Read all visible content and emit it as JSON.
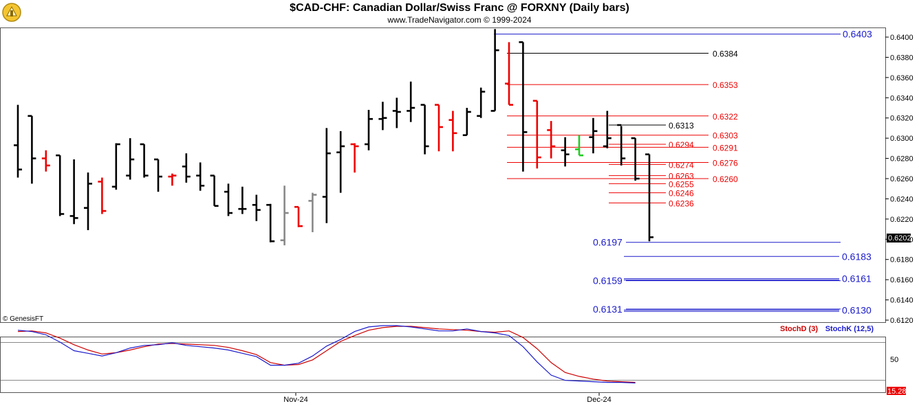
{
  "header": {
    "title": "$CAD-CHF:  Canadian Dollar/Swiss Franc @ FORXNY  (Daily bars)",
    "subtitle": "www.TradeNavigator.com © 1999-2024"
  },
  "price_panel": {
    "copyright": "© GenesisFT",
    "current_price": "0.6202"
  },
  "indicator_panel": {
    "legend": [
      {
        "label": "StochD (3)",
        "color": "#cc0000"
      },
      {
        "label": "StochK (12,5)",
        "color": "#1a1acc"
      }
    ],
    "y_label": "50",
    "current_value": "15.28"
  },
  "x_axis_labels": [
    "Nov-24",
    "Dec-24"
  ],
  "colors": {
    "up_bar": "#000000",
    "down_red": "#ee0000",
    "neutral_gray": "#888888",
    "blue_level": "#1a1acc",
    "red_level": "#ee0000",
    "black_level": "#000000",
    "price_tag_bg": "#000000",
    "stoch_tag_bg": "#ee0000"
  },
  "chart_data": [
    {
      "type": "ohlc",
      "title": "$CAD-CHF:  Canadian Dollar/Swiss Franc @ FORXNY  (Daily bars)",
      "ylim": [
        0.6115,
        0.6412
      ],
      "y_ticks": [
        "0.6400",
        "0.6380",
        "0.6360",
        "0.6340",
        "0.6320",
        "0.6300",
        "0.6280",
        "0.6260",
        "0.6240",
        "0.6220",
        "0.6200",
        "0.6180",
        "0.6160",
        "0.6140",
        "0.6120"
      ],
      "bars": [
        {
          "h": 0.6333,
          "l": 0.6261,
          "o": 0.6293,
          "c": 0.6269,
          "color": "black"
        },
        {
          "h": 0.6322,
          "l": 0.6255,
          "o": 0.6322,
          "c": 0.628,
          "color": "black"
        },
        {
          "h": 0.6288,
          "l": 0.6267,
          "o": 0.628,
          "c": 0.6273,
          "color": "red"
        },
        {
          "h": 0.6283,
          "l": 0.6223,
          "o": 0.6283,
          "c": 0.6225,
          "color": "black"
        },
        {
          "h": 0.6279,
          "l": 0.6215,
          "o": 0.6223,
          "c": 0.6221,
          "color": "black"
        },
        {
          "h": 0.6266,
          "l": 0.6209,
          "o": 0.6231,
          "c": 0.6255,
          "color": "black"
        },
        {
          "h": 0.6261,
          "l": 0.6225,
          "o": 0.6257,
          "c": 0.6228,
          "color": "red"
        },
        {
          "h": 0.6295,
          "l": 0.6249,
          "o": 0.6252,
          "c": 0.6294,
          "color": "black"
        },
        {
          "h": 0.63,
          "l": 0.6259,
          "o": 0.6263,
          "c": 0.6279,
          "color": "black"
        },
        {
          "h": 0.6294,
          "l": 0.6261,
          "o": 0.6294,
          "c": 0.6263,
          "color": "black"
        },
        {
          "h": 0.6279,
          "l": 0.6247,
          "o": 0.6279,
          "c": 0.6262,
          "color": "black"
        },
        {
          "h": 0.6265,
          "l": 0.6253,
          "o": 0.6262,
          "c": 0.6263,
          "color": "red"
        },
        {
          "h": 0.6285,
          "l": 0.6256,
          "o": 0.6272,
          "c": 0.6262,
          "color": "black"
        },
        {
          "h": 0.6276,
          "l": 0.6248,
          "o": 0.6263,
          "c": 0.6253,
          "color": "black"
        },
        {
          "h": 0.6263,
          "l": 0.6233,
          "o": 0.6263,
          "c": 0.6233,
          "color": "black"
        },
        {
          "h": 0.6255,
          "l": 0.6223,
          "o": 0.6247,
          "c": 0.6226,
          "color": "black"
        },
        {
          "h": 0.6252,
          "l": 0.6225,
          "o": 0.623,
          "c": 0.623,
          "color": "black"
        },
        {
          "h": 0.6244,
          "l": 0.6218,
          "o": 0.6234,
          "c": 0.6229,
          "color": "black"
        },
        {
          "h": 0.6235,
          "l": 0.6197,
          "o": 0.6234,
          "c": 0.6198,
          "color": "black"
        },
        {
          "h": 0.6253,
          "l": 0.6194,
          "o": 0.6199,
          "c": 0.6226,
          "color": "gray"
        },
        {
          "h": 0.6232,
          "l": 0.6212,
          "o": 0.6232,
          "c": 0.6213,
          "color": "red"
        },
        {
          "h": 0.6246,
          "l": 0.6207,
          "o": 0.6238,
          "c": 0.6244,
          "color": "gray"
        },
        {
          "h": 0.631,
          "l": 0.6216,
          "o": 0.6242,
          "c": 0.6285,
          "color": "black"
        },
        {
          "h": 0.6307,
          "l": 0.6246,
          "o": 0.6286,
          "c": 0.6292,
          "color": "black"
        },
        {
          "h": 0.6295,
          "l": 0.6266,
          "o": 0.6294,
          "c": 0.6292,
          "color": "red"
        },
        {
          "h": 0.6328,
          "l": 0.6288,
          "o": 0.6294,
          "c": 0.6319,
          "color": "black"
        },
        {
          "h": 0.6336,
          "l": 0.6308,
          "o": 0.6319,
          "c": 0.632,
          "color": "black"
        },
        {
          "h": 0.634,
          "l": 0.631,
          "o": 0.6327,
          "c": 0.6326,
          "color": "black"
        },
        {
          "h": 0.6356,
          "l": 0.6316,
          "o": 0.6327,
          "c": 0.633,
          "color": "black"
        },
        {
          "h": 0.6333,
          "l": 0.6284,
          "o": 0.6333,
          "c": 0.6292,
          "color": "black"
        },
        {
          "h": 0.6333,
          "l": 0.6287,
          "o": 0.6333,
          "c": 0.6311,
          "color": "red"
        },
        {
          "h": 0.6327,
          "l": 0.6287,
          "o": 0.6318,
          "c": 0.6305,
          "color": "red"
        },
        {
          "h": 0.633,
          "l": 0.6303,
          "o": 0.6303,
          "c": 0.6326,
          "color": "black"
        },
        {
          "h": 0.635,
          "l": 0.632,
          "o": 0.6322,
          "c": 0.6346,
          "color": "black"
        },
        {
          "h": 0.6408,
          "l": 0.6327,
          "o": 0.6327,
          "c": 0.6387,
          "color": "black"
        },
        {
          "h": 0.6395,
          "l": 0.6333,
          "o": 0.6354,
          "c": 0.6333,
          "color": "red"
        },
        {
          "h": 0.6395,
          "l": 0.6267,
          "o": 0.6395,
          "c": 0.6306,
          "color": "black"
        },
        {
          "h": 0.6337,
          "l": 0.627,
          "o": 0.6337,
          "c": 0.6281,
          "color": "red"
        },
        {
          "h": 0.6317,
          "l": 0.628,
          "o": 0.6308,
          "c": 0.6292,
          "color": "red"
        },
        {
          "h": 0.6301,
          "l": 0.6272,
          "o": 0.6288,
          "c": 0.6284,
          "color": "black"
        },
        {
          "h": 0.6303,
          "l": 0.6283,
          "o": 0.6289,
          "c": 0.6283,
          "color": "green"
        },
        {
          "h": 0.632,
          "l": 0.6285,
          "o": 0.6301,
          "c": 0.6307,
          "color": "black"
        },
        {
          "h": 0.6327,
          "l": 0.629,
          "o": 0.6292,
          "c": 0.63,
          "color": "black"
        },
        {
          "h": 0.6312,
          "l": 0.6273,
          "o": 0.6313,
          "c": 0.628,
          "color": "black"
        },
        {
          "h": 0.63,
          "l": 0.6258,
          "o": 0.63,
          "c": 0.626,
          "color": "black"
        },
        {
          "h": 0.6284,
          "l": 0.6198,
          "o": 0.6284,
          "c": 0.6202,
          "color": "black"
        }
      ],
      "levels_blue": [
        0.6403,
        0.6183,
        0.6161,
        0.613,
        0.6197,
        0.6159,
        0.6131
      ],
      "levels_red": [
        0.6353,
        0.6322,
        0.6303,
        0.6291,
        0.6276,
        0.626,
        0.6294,
        0.6274,
        0.6263,
        0.6255,
        0.6246,
        0.6236
      ],
      "levels_black": [
        0.6384,
        0.6313
      ]
    },
    {
      "type": "line",
      "title": "",
      "ylim": [
        0,
        100
      ],
      "series": [
        {
          "name": "StochD (3)",
          "values": [
            91,
            92,
            89,
            81,
            71,
            63,
            57,
            59,
            63,
            68,
            72,
            73,
            72,
            71,
            70,
            67,
            62,
            56,
            44,
            40,
            41,
            48,
            62,
            76,
            85,
            93,
            97,
            99,
            99,
            97,
            95,
            94,
            93,
            91,
            90,
            92,
            82,
            65,
            44,
            29,
            23,
            19,
            16,
            15,
            14
          ]
        },
        {
          "name": "StochK (12,5)",
          "values": [
            93,
            91,
            86,
            75,
            62,
            58,
            54,
            59,
            66,
            70,
            71,
            74,
            70,
            68,
            66,
            63,
            58,
            53,
            40,
            40,
            43,
            54,
            69,
            79,
            91,
            98,
            100,
            100,
            98,
            95,
            92,
            92,
            95,
            91,
            89,
            85,
            68,
            45,
            25,
            17,
            16,
            15,
            14,
            14,
            13
          ]
        }
      ]
    }
  ]
}
